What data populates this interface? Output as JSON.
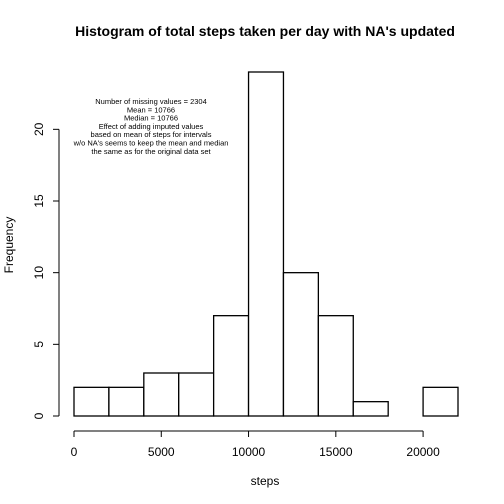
{
  "chart_data": {
    "type": "bar",
    "title": "Histogram of total steps taken per day with NA's updated",
    "xlabel": "steps",
    "ylabel": "Frequency",
    "bins": [
      {
        "from": 0,
        "to": 2000,
        "count": 2
      },
      {
        "from": 2000,
        "to": 4000,
        "count": 2
      },
      {
        "from": 4000,
        "to": 6000,
        "count": 3
      },
      {
        "from": 6000,
        "to": 8000,
        "count": 3
      },
      {
        "from": 8000,
        "to": 10000,
        "count": 7
      },
      {
        "from": 10000,
        "to": 12000,
        "count": 24
      },
      {
        "from": 12000,
        "to": 14000,
        "count": 10
      },
      {
        "from": 14000,
        "to": 16000,
        "count": 7
      },
      {
        "from": 16000,
        "to": 18000,
        "count": 1
      },
      {
        "from": 18000,
        "to": 20000,
        "count": 0
      },
      {
        "from": 20000,
        "to": 22000,
        "count": 2
      }
    ],
    "xlim": [
      0,
      22000
    ],
    "ylim": [
      0,
      24
    ],
    "x_ticks": [
      0,
      5000,
      10000,
      15000,
      20000
    ],
    "y_ticks": [
      0,
      5,
      10,
      15,
      20
    ],
    "annotation_lines": [
      "Number of missing values =  2304",
      "Mean =  10766",
      "Median =  10766",
      "Effect of adding imputed values",
      "based on mean of steps for intervals",
      "w/o NA's seems to keep the mean and median",
      "the same as for the original data set"
    ]
  }
}
